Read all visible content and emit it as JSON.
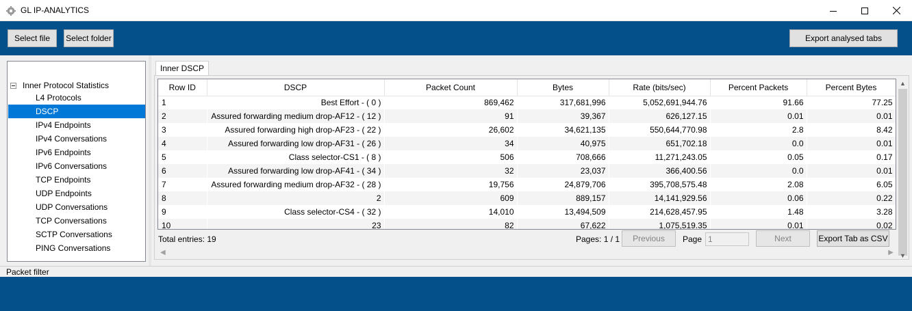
{
  "window": {
    "title": "GL IP-ANALYTICS",
    "controls": {
      "minimize_icon": "minimize-icon",
      "maximize_icon": "maximize-icon",
      "close_icon": "close-icon"
    }
  },
  "toolbar": {
    "select_file": "Select file",
    "select_folder": "Select folder",
    "export_analysed": "Export analysed tabs"
  },
  "tree": {
    "root": "Inner Protocol Statistics",
    "items": [
      "L4 Protocols",
      "DSCP",
      "IPv4 Endpoints",
      "IPv4 Conversations",
      "IPv6 Endpoints",
      "IPv6 Conversations",
      "TCP Endpoints",
      "UDP Endpoints",
      "UDP Conversations",
      "TCP Conversations",
      "SCTP Conversations",
      "PING Conversations"
    ],
    "selected_index": 1
  },
  "tab": {
    "label": "Inner DSCP"
  },
  "table": {
    "columns": [
      "Row ID",
      "DSCP",
      "Packet Count",
      "Bytes",
      "Rate (bits/sec)",
      "Percent Packets",
      "Percent Bytes"
    ],
    "rows": [
      [
        "1",
        "Best Effort - ( 0 )",
        "869,462",
        "317,681,996",
        "5,052,691,944.76",
        "91.66",
        "77.25"
      ],
      [
        "2",
        "Assured forwarding medium drop-AF12 - ( 12 )",
        "91",
        "39,367",
        "626,127.15",
        "0.01",
        "0.01"
      ],
      [
        "3",
        "Assured forwarding high drop-AF23 - ( 22 )",
        "26,602",
        "34,621,135",
        "550,644,770.98",
        "2.8",
        "8.42"
      ],
      [
        "4",
        "Assured forwarding low drop-AF31 - ( 26 )",
        "34",
        "40,975",
        "651,702.18",
        "0.0",
        "0.01"
      ],
      [
        "5",
        "Class selector-CS1 - ( 8 )",
        "506",
        "708,666",
        "11,271,243.05",
        "0.05",
        "0.17"
      ],
      [
        "6",
        "Assured forwarding low drop-AF41 - ( 34 )",
        "32",
        "23,037",
        "366,400.56",
        "0.0",
        "0.01"
      ],
      [
        "7",
        "Assured forwarding medium drop-AF32 - ( 28 )",
        "19,756",
        "24,879,706",
        "395,708,575.48",
        "2.08",
        "6.05"
      ],
      [
        "8",
        "2",
        "609",
        "889,157",
        "14,141,929.56",
        "0.06",
        "0.22"
      ],
      [
        "9",
        "Class selector-CS4 - ( 32 )",
        "14,010",
        "13,494,509",
        "214,628,457.95",
        "1.48",
        "3.28"
      ],
      [
        "10",
        "23",
        "82",
        "67,622",
        "1,075,519.35",
        "0.01",
        "0.02"
      ]
    ]
  },
  "footer": {
    "total_entries": "Total entries: 19",
    "pages": "Pages: 1 / 1",
    "previous": "Previous",
    "page_label": "Page",
    "page_value": "1",
    "next": "Next",
    "export_csv": "Export Tab as CSV"
  },
  "packet_filter": {
    "label": "Packet filter"
  },
  "colors": {
    "band": "#04508a",
    "selection": "#0078d7"
  }
}
